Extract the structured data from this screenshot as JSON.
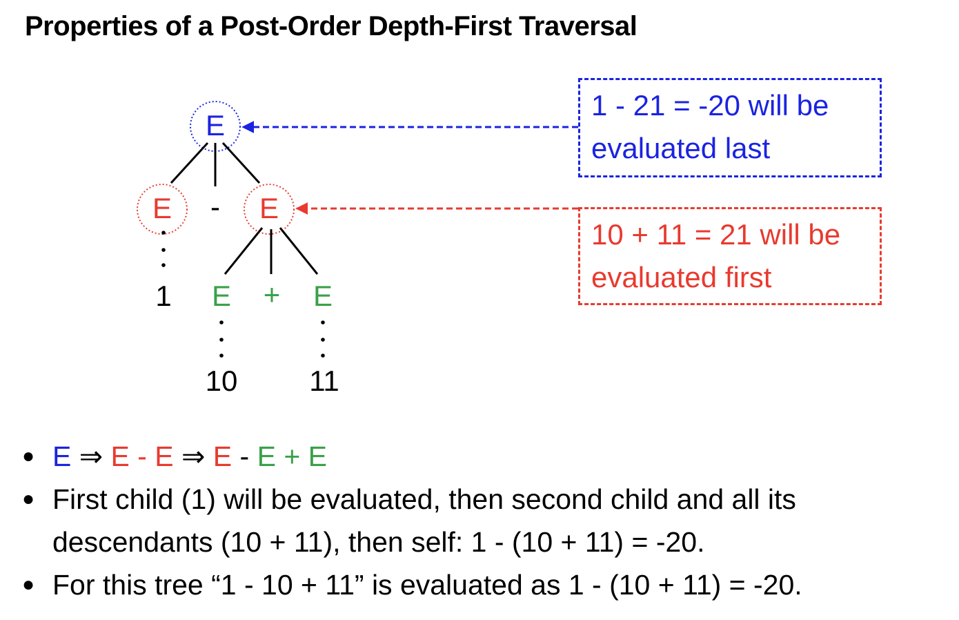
{
  "title": "Properties of a Post-Order Depth-First Traversal",
  "colors": {
    "blue": "#1a23e0",
    "red": "#e83a2f",
    "green": "#3aa14a"
  },
  "tree": {
    "root": "E",
    "left": "E",
    "op1": "-",
    "right": "E",
    "leaf1": "1",
    "right_left": "E",
    "op2": "+",
    "right_right": "E",
    "leaf10": "10",
    "leaf11": "11"
  },
  "callouts": {
    "last": {
      "line1": "1 - 21 = -20 will be",
      "line2": "evaluated last"
    },
    "first": {
      "line1": "10 + 11 = 21 will be",
      "line2": "evaluated first"
    }
  },
  "bullets": {
    "derivation": [
      {
        "text": "E",
        "color": "blue"
      },
      {
        "text": " ⇒ ",
        "color": "black"
      },
      {
        "text": "E - E",
        "color": "red"
      },
      {
        "text": " ⇒ ",
        "color": "black"
      },
      {
        "text": "E",
        "color": "red"
      },
      {
        "text": " - ",
        "color": "black"
      },
      {
        "text": "E + E",
        "color": "green"
      }
    ],
    "second_line1": "First child (1) will be evaluated, then second child and all its",
    "second_line2": "descendants (10 + 11), then self: 1 - (10 + 11) =  -20.",
    "third": "For this tree “1 - 10 + 11” is evaluated as 1 - (10 + 11) = -20."
  }
}
